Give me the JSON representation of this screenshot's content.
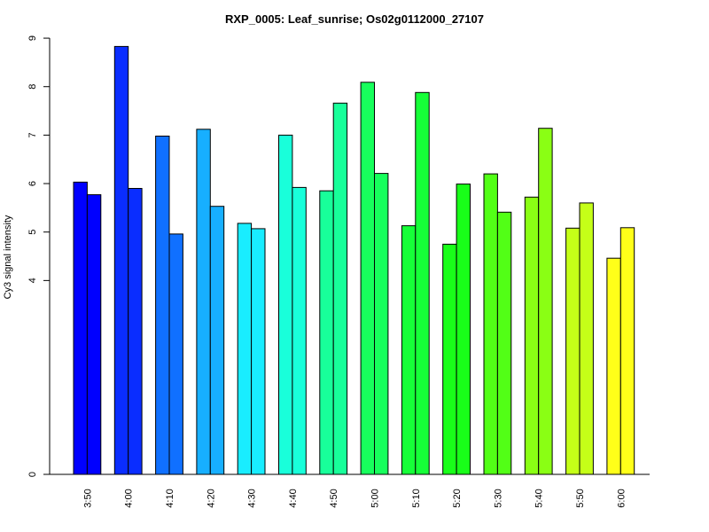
{
  "chart_data": {
    "type": "bar",
    "title": "RXP_0005: Leaf_sunrise; Os02g0112000_27107",
    "xlabel": "",
    "ylabel": "Cy3 signal intensity",
    "categories": [
      "3:50",
      "4:00",
      "4:10",
      "4:20",
      "4:30",
      "4:40",
      "4:50",
      "5:00",
      "5:10",
      "5:20",
      "5:30",
      "5:40",
      "5:50",
      "6:00"
    ],
    "yticks": [
      0,
      4,
      5,
      6,
      7,
      8,
      9
    ],
    "ylim": [
      0,
      9
    ],
    "grid": false,
    "legend": "none",
    "bars": [
      {
        "category": "3:50",
        "values": [
          6.03,
          5.77
        ],
        "color": "#0000FF"
      },
      {
        "category": "4:00",
        "values": [
          8.83,
          5.9
        ],
        "color": "#0A2DFF"
      },
      {
        "category": "4:10",
        "values": [
          6.98,
          4.96
        ],
        "color": "#1070FF"
      },
      {
        "category": "4:20",
        "values": [
          7.12,
          5.53
        ],
        "color": "#17AFFF"
      },
      {
        "category": "4:30",
        "values": [
          5.18,
          5.07
        ],
        "color": "#19EDFF"
      },
      {
        "category": "4:40",
        "values": [
          7.0,
          5.92
        ],
        "color": "#19FFDA"
      },
      {
        "category": "4:50",
        "values": [
          5.85,
          7.66
        ],
        "color": "#18FF9A"
      },
      {
        "category": "5:00",
        "values": [
          8.09,
          6.21
        ],
        "color": "#17FF5C"
      },
      {
        "category": "5:10",
        "values": [
          5.13,
          7.88
        ],
        "color": "#16FF38"
      },
      {
        "category": "5:20",
        "values": [
          4.75,
          5.99
        ],
        "color": "#19FF19"
      },
      {
        "category": "5:30",
        "values": [
          6.2,
          5.41
        ],
        "color": "#52FF16"
      },
      {
        "category": "5:40",
        "values": [
          5.72,
          7.14
        ],
        "color": "#8AFF14"
      },
      {
        "category": "5:50",
        "values": [
          5.08,
          5.6
        ],
        "color": "#C5FF18"
      },
      {
        "category": "6:00",
        "values": [
          4.46,
          5.09
        ],
        "color": "#FFFF19"
      }
    ]
  }
}
